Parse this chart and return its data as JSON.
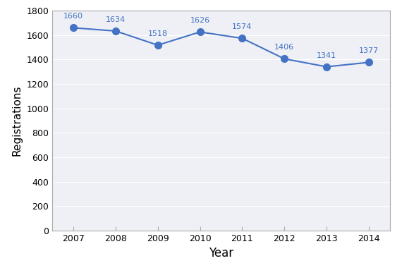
{
  "years": [
    2007,
    2008,
    2009,
    2010,
    2011,
    2012,
    2013,
    2014
  ],
  "values": [
    1660,
    1634,
    1518,
    1626,
    1574,
    1406,
    1341,
    1377
  ],
  "line_color": "#4472C4",
  "marker_color": "#4472C4",
  "xlabel": "Year",
  "ylabel": "Registrations",
  "ylim": [
    0,
    1800
  ],
  "yticks": [
    0,
    200,
    400,
    600,
    800,
    1000,
    1200,
    1400,
    1600,
    1800
  ],
  "xlabel_fontsize": 12,
  "ylabel_fontsize": 11,
  "tick_fontsize": 9,
  "annotation_fontsize": 8,
  "background_color": "#ffffff",
  "plot_bg_color": "#eef0f5",
  "grid_color": "#ffffff",
  "spine_color": "#aaaaaa",
  "annotation_color": "#4472C4"
}
